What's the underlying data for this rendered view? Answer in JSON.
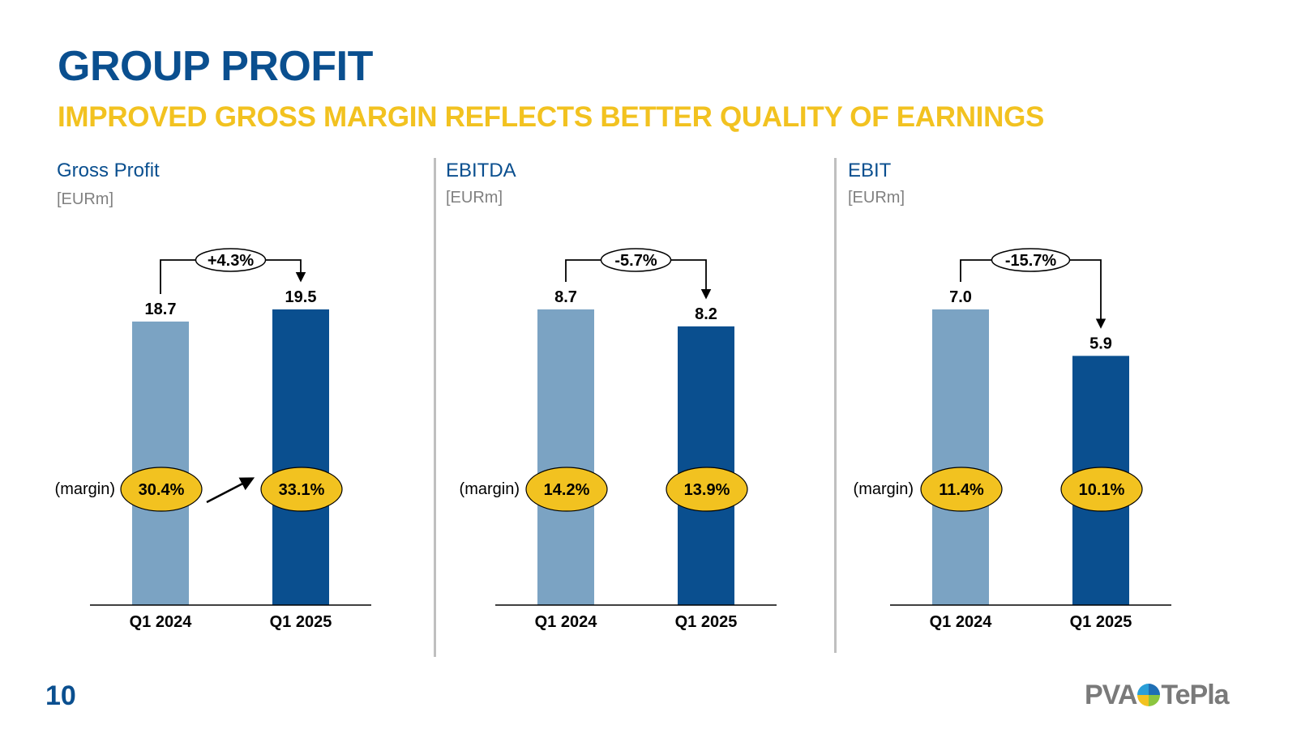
{
  "header": {
    "title": "GROUP PROFIT",
    "subtitle": "IMPROVED GROSS MARGIN REFLECTS BETTER QUALITY OF EARNINGS"
  },
  "footer": {
    "page_number": "10",
    "logo_text_left": "PVA",
    "logo_text_right": "TePla"
  },
  "colors": {
    "title": "#0a4f8f",
    "subtitle": "#f2c220",
    "bar_prior": "#7ba3c3",
    "bar_current": "#0a4f8f",
    "margin_badge": "#f2c220"
  },
  "chart_data": [
    {
      "type": "bar",
      "title": "Gross Profit",
      "unit": "[EURm]",
      "categories": [
        "Q1 2024",
        "Q1 2025"
      ],
      "values": [
        18.7,
        19.5
      ],
      "value_labels": [
        "18.7",
        "19.5"
      ],
      "change_label": "+4.3%",
      "margin_label": "(margin)",
      "margins": [
        "30.4%",
        "33.1%"
      ],
      "margin_trend_arrow": true
    },
    {
      "type": "bar",
      "title": "EBITDA",
      "unit": "[EURm]",
      "categories": [
        "Q1 2024",
        "Q1 2025"
      ],
      "values": [
        8.7,
        8.2
      ],
      "value_labels": [
        "8.7",
        "8.2"
      ],
      "change_label": "-5.7%",
      "margin_label": "(margin)",
      "margins": [
        "14.2%",
        "13.9%"
      ],
      "margin_trend_arrow": false
    },
    {
      "type": "bar",
      "title": "EBIT",
      "unit": "[EURm]",
      "categories": [
        "Q1 2024",
        "Q1 2025"
      ],
      "values": [
        7.0,
        5.9
      ],
      "value_labels": [
        "7.0",
        "5.9"
      ],
      "change_label": "-15.7%",
      "margin_label": "(margin)",
      "margins": [
        "11.4%",
        "10.1%"
      ],
      "margin_trend_arrow": false
    }
  ]
}
